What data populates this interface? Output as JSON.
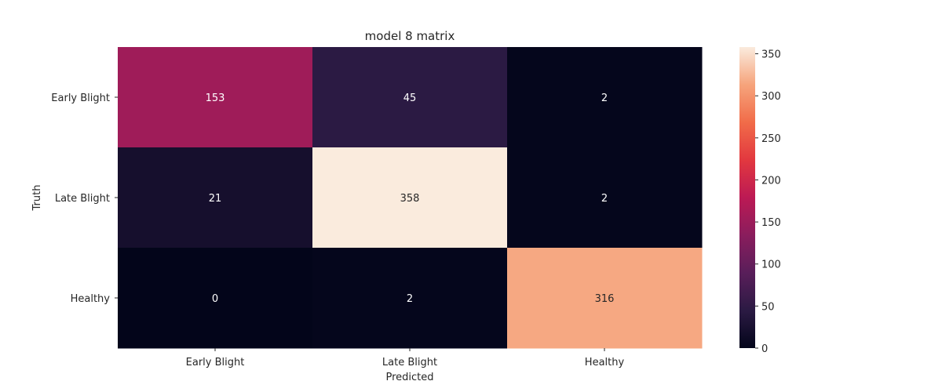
{
  "chart_data": {
    "type": "heatmap",
    "title": "model 8 matrix",
    "xlabel": "Predicted",
    "ylabel": "Truth",
    "x_categories": [
      "Early Blight",
      "Late Blight",
      "Healthy"
    ],
    "y_categories": [
      "Early Blight",
      "Late Blight",
      "Healthy"
    ],
    "values": [
      [
        153,
        45,
        2
      ],
      [
        21,
        358,
        2
      ],
      [
        0,
        2,
        316
      ]
    ],
    "colorbar": {
      "range": [
        0,
        358
      ],
      "ticks": [
        0,
        50,
        100,
        150,
        200,
        250,
        300,
        350
      ]
    },
    "colormap": "rocket"
  }
}
